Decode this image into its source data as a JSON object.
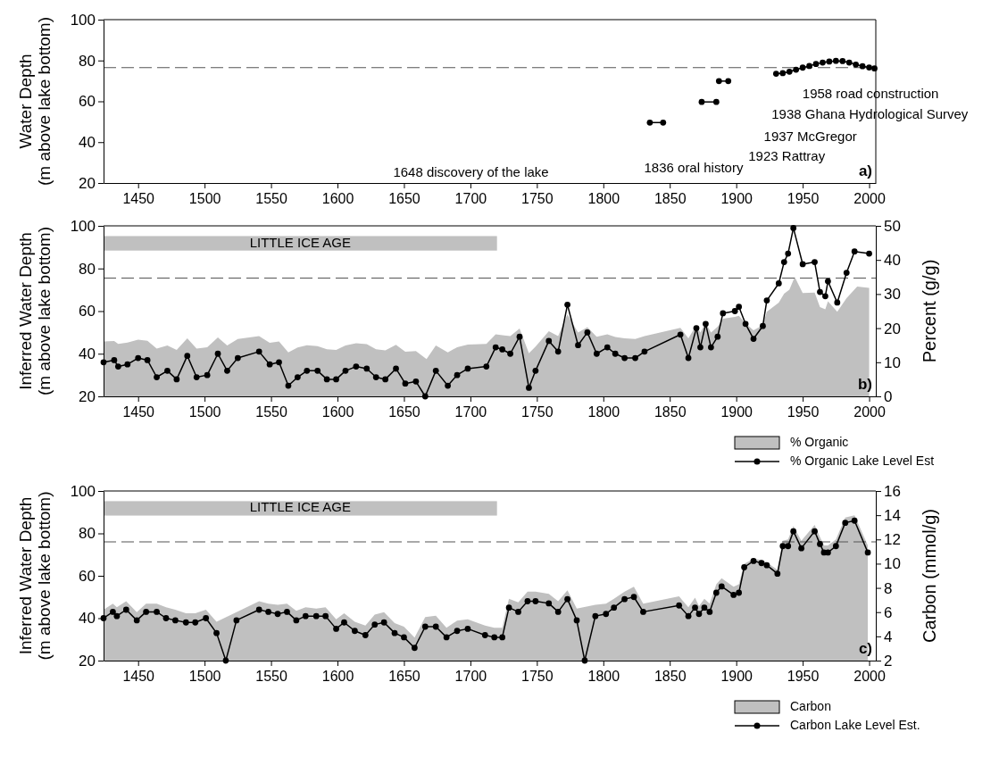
{
  "chart_data": [
    {
      "type": "line",
      "ylabel": "Water Depth\n(m above lake bottom)",
      "xlim": [
        1424,
        2005
      ],
      "xticks": [
        1450,
        1500,
        1550,
        1600,
        1650,
        1700,
        1750,
        1800,
        1850,
        1900,
        1950,
        2000
      ],
      "ylim": [
        20,
        100
      ],
      "yticks": [
        20,
        40,
        60,
        80,
        100
      ],
      "marker": "circle",
      "ref_lines": [
        {
          "axis": "y",
          "value": 76.5,
          "line_style": "dashed",
          "color": "#555555"
        }
      ],
      "annotations": [
        "1648 discovery of the lake",
        "1836 oral history",
        "1923 Rattray",
        "1937 McGregor",
        "1938 Ghana Hydrological Survey",
        "1958 road construction",
        "a)"
      ],
      "series": [
        {
          "color": "#000000",
          "x": [
            1835,
            1845
          ],
          "values": [
            49.6,
            49.6
          ]
        },
        {
          "color": "#000000",
          "x": [
            1874,
            1885
          ],
          "values": [
            59.7,
            59.7
          ]
        },
        {
          "color": "#000000",
          "x": [
            1887,
            1894
          ],
          "values": [
            69.9,
            69.9
          ]
        },
        {
          "color": "#000000",
          "x": [
            1930,
            1935,
            1940,
            1945,
            1950,
            1955,
            1960,
            1965,
            1970,
            1975,
            1980,
            1985,
            1990,
            1995,
            2000,
            2004
          ],
          "values": [
            73.5,
            73.8,
            74.5,
            75.5,
            76.5,
            77.3,
            78.3,
            79,
            79.5,
            79.8,
            79.7,
            79,
            78,
            77.2,
            76.6,
            76.1
          ]
        }
      ]
    },
    {
      "type": "line",
      "ylabel": "Inferred Water Depth\n(m above lake bottom)",
      "y2label": "Percent (g/g)",
      "xlim": [
        1424,
        2005
      ],
      "xticks": [
        1450,
        1500,
        1550,
        1600,
        1650,
        1700,
        1750,
        1800,
        1850,
        1900,
        1950,
        2000
      ],
      "ylim": [
        20,
        100
      ],
      "yticks": [
        20,
        40,
        60,
        80,
        100
      ],
      "y2lim": [
        0,
        50
      ],
      "y2ticks": [
        0,
        10,
        20,
        30,
        40,
        50
      ],
      "legend": "bottom right",
      "ref_lines": [
        {
          "axis": "y",
          "value": 75.5,
          "line_style": "dashed",
          "color": "#555555"
        }
      ],
      "bands": [
        {
          "axis": "x",
          "from": 1424,
          "to": 1720,
          "label": "LITTLE ICE AGE",
          "color": "#c0c0c0"
        }
      ],
      "annotations": [
        "b)"
      ],
      "series": [
        {
          "name": "% Organic",
          "type": "area",
          "axis": "y2",
          "color": "#c0c0c0",
          "x": [
            1424,
            1432,
            1435,
            1442,
            1450,
            1457,
            1464,
            1472,
            1479,
            1487,
            1494,
            1502,
            1510,
            1517,
            1525,
            1541,
            1549,
            1556,
            1563,
            1570,
            1577,
            1585,
            1592,
            1599,
            1606,
            1614,
            1622,
            1629,
            1636,
            1644,
            1651,
            1659,
            1667,
            1674,
            1683,
            1690,
            1698,
            1712,
            1719,
            1724,
            1730,
            1737,
            1744,
            1749,
            1759,
            1766,
            1773,
            1781,
            1788,
            1795,
            1803,
            1809,
            1816,
            1824,
            1831,
            1858,
            1864,
            1870,
            1873,
            1877,
            1881,
            1886,
            1890,
            1899,
            1902,
            1907,
            1913,
            1920,
            1923,
            1932,
            1936,
            1940,
            1944,
            1950,
            1959,
            1963,
            1967,
            1969,
            1976,
            1983,
            1991,
            2000
          ],
          "values": [
            16.1,
            16.2,
            15.4,
            15.8,
            16.6,
            16.3,
            14.0,
            14.9,
            13.6,
            17.0,
            14.0,
            14.4,
            17.3,
            14.9,
            16.8,
            17.7,
            15.7,
            16.1,
            12.9,
            14.3,
            15.0,
            14.7,
            13.8,
            13.6,
            14.9,
            15.6,
            15.3,
            13.8,
            13.5,
            15.1,
            13.1,
            13.3,
            10.9,
            14.9,
            12.9,
            14.4,
            15.2,
            15.4,
            18.2,
            17.9,
            17.7,
            19.9,
            12.6,
            14.6,
            19.1,
            17.7,
            24.0,
            18.7,
            20.3,
            17.5,
            18.2,
            17.4,
            17.0,
            16.8,
            17.7,
            20.1,
            17.0,
            20.9,
            18.7,
            21.6,
            18.7,
            20.4,
            22.8,
            23.3,
            23.6,
            21.4,
            19.4,
            20.9,
            24.8,
            27.5,
            30.1,
            31.3,
            35.0,
            30.3,
            30.4,
            26.2,
            25.5,
            27.9,
            24.8,
            28.8,
            32.2,
            31.8
          ]
        },
        {
          "name": "% Organic Lake Level Est",
          "marker": "circle",
          "color": "#000000",
          "x": [
            1424,
            1432,
            1435,
            1442,
            1450,
            1457,
            1464,
            1472,
            1479,
            1487,
            1494,
            1502,
            1510,
            1517,
            1525,
            1541,
            1549,
            1556,
            1563,
            1570,
            1577,
            1585,
            1592,
            1599,
            1606,
            1614,
            1622,
            1629,
            1636,
            1644,
            1651,
            1659,
            1666,
            1674,
            1683,
            1690,
            1698,
            1712,
            1719,
            1724,
            1730,
            1737,
            1744,
            1749,
            1759,
            1766,
            1773,
            1781,
            1788,
            1795,
            1803,
            1809,
            1816,
            1824,
            1831,
            1858,
            1864,
            1870,
            1873,
            1877,
            1881,
            1886,
            1890,
            1899,
            1902,
            1907,
            1913,
            1920,
            1923,
            1932,
            1936,
            1939,
            1943,
            1950,
            1959,
            1963,
            1967,
            1969,
            1976,
            1983,
            1989,
            2000
          ],
          "values": [
            36,
            37,
            34,
            35,
            38,
            37,
            29,
            32,
            28,
            39,
            29,
            30,
            40,
            32,
            38,
            41,
            35,
            36,
            25,
            29,
            32,
            32,
            28,
            28,
            32,
            34,
            33,
            29,
            28,
            33,
            26,
            27,
            20,
            32,
            25,
            30,
            33,
            34,
            43,
            42,
            40,
            48,
            24,
            32,
            46,
            41,
            63,
            44,
            50,
            40,
            43,
            40,
            38,
            38,
            41,
            49,
            38,
            52,
            43,
            54,
            43,
            48,
            59,
            60,
            62,
            54,
            47,
            53,
            65,
            73,
            83,
            87,
            99,
            82,
            83,
            69,
            67,
            74,
            64,
            78,
            88,
            87
          ]
        }
      ]
    },
    {
      "type": "line",
      "ylabel": "Inferred Water Depth\n(m above lake bottom)",
      "y2label": "Carbon (mmol/g)",
      "xlim": [
        1424,
        2005
      ],
      "xticks": [
        1450,
        1500,
        1550,
        1600,
        1650,
        1700,
        1750,
        1800,
        1850,
        1900,
        1950,
        2000
      ],
      "ylim": [
        20,
        100
      ],
      "yticks": [
        20,
        40,
        60,
        80,
        100
      ],
      "y2lim": [
        2,
        16
      ],
      "y2ticks": [
        2,
        4,
        6,
        8,
        10,
        12,
        14,
        16
      ],
      "legend": "bottom right",
      "ref_lines": [
        {
          "axis": "y",
          "value": 76,
          "line_style": "dashed",
          "color": "#555555"
        }
      ],
      "bands": [
        {
          "axis": "x",
          "from": 1424,
          "to": 1720,
          "label": "LITTLE ICE AGE",
          "color": "#c0c0c0"
        }
      ],
      "annotations": [
        "c)"
      ],
      "series": [
        {
          "name": "Carbon",
          "type": "area",
          "axis": "y2",
          "color": "#c0c0c0",
          "x": [
            1424,
            1431,
            1434,
            1441,
            1449,
            1456,
            1464,
            1471,
            1478,
            1486,
            1493,
            1501,
            1509,
            1541,
            1548,
            1555,
            1562,
            1569,
            1576,
            1584,
            1591,
            1599,
            1605,
            1613,
            1621,
            1628,
            1635,
            1643,
            1650,
            1658,
            1666,
            1674,
            1682,
            1690,
            1698,
            1711,
            1718,
            1724,
            1729,
            1736,
            1743,
            1749,
            1759,
            1766,
            1773,
            1780,
            1794,
            1802,
            1808,
            1816,
            1823,
            1830,
            1857,
            1864,
            1869,
            1872,
            1876,
            1880,
            1885,
            1889,
            1898,
            1902,
            1906,
            1913,
            1919,
            1923,
            1931,
            1935,
            1939,
            1943,
            1949,
            1959,
            1963,
            1966,
            1969,
            1975,
            1982,
            1989,
            1999
          ],
          "values": [
            6.2,
            6.7,
            6.4,
            6.9,
            6.0,
            6.7,
            6.7,
            6.4,
            6.2,
            5.9,
            5.9,
            6.2,
            5.2,
            6.9,
            6.7,
            6.6,
            6.7,
            6.1,
            6.4,
            6.3,
            6.4,
            5.4,
            5.9,
            5.2,
            4.9,
            5.8,
            6.0,
            5.1,
            4.8,
            3.9,
            5.6,
            5.7,
            4.7,
            5.3,
            5.4,
            4.9,
            4.7,
            4.7,
            7.1,
            6.8,
            7.7,
            7.7,
            7.5,
            6.9,
            7.8,
            6.3,
            6.6,
            6.7,
            7.1,
            7.7,
            8.1,
            6.7,
            7.3,
            6.4,
            7.2,
            6.5,
            7.1,
            6.7,
            8.3,
            8.8,
            8.1,
            8.3,
            10.0,
            10.4,
            10.3,
            10.1,
            9.5,
            11.9,
            12.0,
            13.1,
            11.9,
            13.2,
            12.2,
            11.5,
            11.5,
            12.0,
            13.8,
            14.0,
            11.5
          ]
        },
        {
          "name": "Carbon Lake Level Est.",
          "marker": "circle",
          "color": "#000000",
          "x": [
            1424,
            1431,
            1434,
            1441,
            1449,
            1456,
            1464,
            1471,
            1478,
            1486,
            1493,
            1501,
            1509,
            1516,
            1524,
            1541,
            1548,
            1555,
            1562,
            1569,
            1576,
            1584,
            1591,
            1599,
            1605,
            1613,
            1621,
            1628,
            1635,
            1643,
            1650,
            1658,
            1666,
            1674,
            1682,
            1690,
            1698,
            1711,
            1718,
            1724,
            1729,
            1736,
            1743,
            1749,
            1759,
            1766,
            1773,
            1780,
            1786,
            1794,
            1802,
            1808,
            1816,
            1823,
            1830,
            1857,
            1864,
            1869,
            1872,
            1876,
            1880,
            1885,
            1889,
            1898,
            1902,
            1906,
            1913,
            1919,
            1923,
            1931,
            1935,
            1939,
            1943,
            1949,
            1959,
            1963,
            1966,
            1969,
            1975,
            1982,
            1989,
            1999
          ],
          "values": [
            40,
            43,
            41,
            44,
            39,
            43,
            43,
            40,
            39,
            38,
            38,
            40,
            33,
            20,
            39,
            44,
            43,
            42,
            43,
            39,
            41,
            41,
            41,
            35,
            38,
            34,
            32,
            37,
            38,
            33,
            31,
            26,
            36,
            36,
            31,
            34,
            35,
            32,
            31,
            31,
            45,
            43,
            48,
            48,
            47,
            43,
            49,
            39,
            20,
            41,
            42,
            45,
            49,
            50,
            43,
            46,
            41,
            45,
            42,
            45,
            43,
            52,
            55,
            51,
            52,
            64,
            67,
            66,
            65,
            61,
            74,
            74,
            81,
            73,
            81,
            75,
            71,
            71,
            74,
            85,
            86,
            71
          ]
        }
      ]
    }
  ]
}
